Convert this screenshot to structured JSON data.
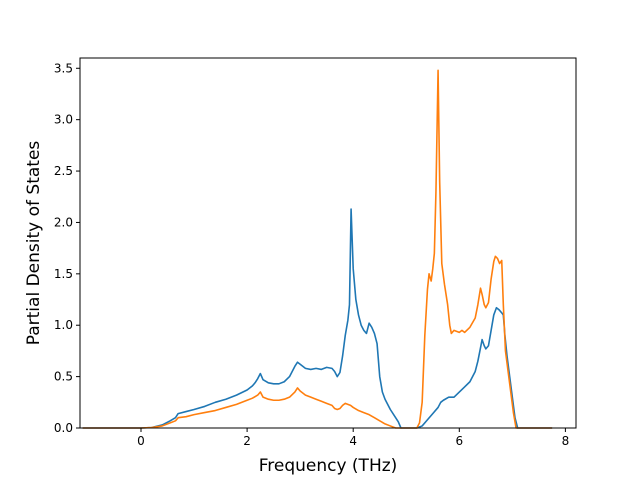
{
  "chart_data": {
    "type": "line",
    "xlabel": "Frequency (THz)",
    "ylabel": "Partial Density of States",
    "xlim": [
      -1.15,
      8.2
    ],
    "ylim": [
      0,
      3.6
    ],
    "xticks": [
      0,
      2,
      4,
      6,
      8
    ],
    "yticks": [
      0.0,
      0.5,
      1.0,
      1.5,
      2.0,
      2.5,
      3.0,
      3.5
    ],
    "xtick_labels": [
      "0",
      "2",
      "4",
      "6",
      "8"
    ],
    "ytick_labels": [
      "0.0",
      "0.5",
      "1.0",
      "1.5",
      "2.0",
      "2.5",
      "3.0",
      "3.5"
    ],
    "grid": false,
    "legend": "none",
    "series": [
      {
        "color": "#1f77b4",
        "points": [
          [
            -1.1,
            0
          ],
          [
            0,
            0
          ],
          [
            0.2,
            0.005
          ],
          [
            0.4,
            0.03
          ],
          [
            0.55,
            0.07
          ],
          [
            0.65,
            0.1
          ],
          [
            0.7,
            0.14
          ],
          [
            0.85,
            0.16
          ],
          [
            1.0,
            0.18
          ],
          [
            1.2,
            0.21
          ],
          [
            1.4,
            0.25
          ],
          [
            1.6,
            0.28
          ],
          [
            1.8,
            0.32
          ],
          [
            2.0,
            0.37
          ],
          [
            2.1,
            0.41
          ],
          [
            2.15,
            0.44
          ],
          [
            2.2,
            0.48
          ],
          [
            2.25,
            0.53
          ],
          [
            2.3,
            0.47
          ],
          [
            2.4,
            0.44
          ],
          [
            2.5,
            0.43
          ],
          [
            2.6,
            0.43
          ],
          [
            2.7,
            0.45
          ],
          [
            2.8,
            0.5
          ],
          [
            2.9,
            0.6
          ],
          [
            2.95,
            0.64
          ],
          [
            3.0,
            0.62
          ],
          [
            3.1,
            0.58
          ],
          [
            3.2,
            0.57
          ],
          [
            3.3,
            0.58
          ],
          [
            3.4,
            0.57
          ],
          [
            3.5,
            0.59
          ],
          [
            3.6,
            0.58
          ],
          [
            3.65,
            0.55
          ],
          [
            3.7,
            0.5
          ],
          [
            3.75,
            0.54
          ],
          [
            3.8,
            0.7
          ],
          [
            3.85,
            0.9
          ],
          [
            3.9,
            1.05
          ],
          [
            3.93,
            1.2
          ],
          [
            3.96,
            2.13
          ],
          [
            4.0,
            1.55
          ],
          [
            4.05,
            1.25
          ],
          [
            4.1,
            1.1
          ],
          [
            4.15,
            1.0
          ],
          [
            4.2,
            0.95
          ],
          [
            4.25,
            0.92
          ],
          [
            4.3,
            1.02
          ],
          [
            4.35,
            0.98
          ],
          [
            4.4,
            0.92
          ],
          [
            4.45,
            0.82
          ],
          [
            4.5,
            0.5
          ],
          [
            4.55,
            0.35
          ],
          [
            4.6,
            0.28
          ],
          [
            4.7,
            0.18
          ],
          [
            4.8,
            0.1
          ],
          [
            4.85,
            0.06
          ],
          [
            4.9,
            0.0
          ],
          [
            5.2,
            0.0
          ],
          [
            5.3,
            0.02
          ],
          [
            5.4,
            0.08
          ],
          [
            5.5,
            0.14
          ],
          [
            5.6,
            0.2
          ],
          [
            5.65,
            0.25
          ],
          [
            5.7,
            0.27
          ],
          [
            5.8,
            0.3
          ],
          [
            5.9,
            0.3
          ],
          [
            6.0,
            0.35
          ],
          [
            6.1,
            0.4
          ],
          [
            6.2,
            0.45
          ],
          [
            6.3,
            0.55
          ],
          [
            6.35,
            0.65
          ],
          [
            6.4,
            0.78
          ],
          [
            6.43,
            0.86
          ],
          [
            6.47,
            0.8
          ],
          [
            6.5,
            0.77
          ],
          [
            6.55,
            0.8
          ],
          [
            6.6,
            0.95
          ],
          [
            6.65,
            1.1
          ],
          [
            6.7,
            1.17
          ],
          [
            6.75,
            1.15
          ],
          [
            6.8,
            1.12
          ],
          [
            6.83,
            1.1
          ],
          [
            6.86,
            0.9
          ],
          [
            6.9,
            0.7
          ],
          [
            6.95,
            0.5
          ],
          [
            7.0,
            0.3
          ],
          [
            7.05,
            0.1
          ],
          [
            7.1,
            0.0
          ],
          [
            7.75,
            0.0
          ]
        ]
      },
      {
        "color": "#ff7f0e",
        "points": [
          [
            -1.1,
            0
          ],
          [
            0,
            0
          ],
          [
            0.2,
            0.004
          ],
          [
            0.4,
            0.02
          ],
          [
            0.55,
            0.05
          ],
          [
            0.65,
            0.07
          ],
          [
            0.7,
            0.1
          ],
          [
            0.85,
            0.11
          ],
          [
            1.0,
            0.13
          ],
          [
            1.2,
            0.15
          ],
          [
            1.4,
            0.17
          ],
          [
            1.6,
            0.2
          ],
          [
            1.8,
            0.23
          ],
          [
            2.0,
            0.27
          ],
          [
            2.1,
            0.29
          ],
          [
            2.2,
            0.32
          ],
          [
            2.25,
            0.35
          ],
          [
            2.3,
            0.3
          ],
          [
            2.4,
            0.28
          ],
          [
            2.5,
            0.27
          ],
          [
            2.6,
            0.27
          ],
          [
            2.7,
            0.28
          ],
          [
            2.8,
            0.3
          ],
          [
            2.9,
            0.35
          ],
          [
            2.95,
            0.39
          ],
          [
            3.0,
            0.36
          ],
          [
            3.1,
            0.32
          ],
          [
            3.2,
            0.3
          ],
          [
            3.3,
            0.28
          ],
          [
            3.4,
            0.26
          ],
          [
            3.5,
            0.24
          ],
          [
            3.6,
            0.22
          ],
          [
            3.65,
            0.19
          ],
          [
            3.7,
            0.18
          ],
          [
            3.75,
            0.19
          ],
          [
            3.8,
            0.22
          ],
          [
            3.85,
            0.24
          ],
          [
            3.9,
            0.23
          ],
          [
            3.95,
            0.22
          ],
          [
            4.0,
            0.2
          ],
          [
            4.1,
            0.17
          ],
          [
            4.2,
            0.15
          ],
          [
            4.3,
            0.13
          ],
          [
            4.4,
            0.1
          ],
          [
            4.5,
            0.07
          ],
          [
            4.6,
            0.04
          ],
          [
            4.7,
            0.02
          ],
          [
            4.8,
            0.0
          ],
          [
            5.2,
            0.0
          ],
          [
            5.25,
            0.05
          ],
          [
            5.3,
            0.25
          ],
          [
            5.35,
            0.9
          ],
          [
            5.4,
            1.35
          ],
          [
            5.43,
            1.5
          ],
          [
            5.47,
            1.43
          ],
          [
            5.5,
            1.55
          ],
          [
            5.53,
            1.7
          ],
          [
            5.56,
            2.3
          ],
          [
            5.6,
            3.48
          ],
          [
            5.63,
            2.4
          ],
          [
            5.67,
            1.6
          ],
          [
            5.72,
            1.4
          ],
          [
            5.78,
            1.2
          ],
          [
            5.82,
            1.0
          ],
          [
            5.85,
            0.92
          ],
          [
            5.9,
            0.95
          ],
          [
            6.0,
            0.93
          ],
          [
            6.05,
            0.95
          ],
          [
            6.1,
            0.93
          ],
          [
            6.2,
            0.98
          ],
          [
            6.3,
            1.07
          ],
          [
            6.35,
            1.2
          ],
          [
            6.4,
            1.36
          ],
          [
            6.43,
            1.3
          ],
          [
            6.47,
            1.2
          ],
          [
            6.5,
            1.17
          ],
          [
            6.55,
            1.22
          ],
          [
            6.6,
            1.45
          ],
          [
            6.65,
            1.62
          ],
          [
            6.68,
            1.67
          ],
          [
            6.72,
            1.65
          ],
          [
            6.76,
            1.6
          ],
          [
            6.8,
            1.63
          ],
          [
            6.83,
            1.2
          ],
          [
            6.87,
            0.75
          ],
          [
            6.92,
            0.55
          ],
          [
            6.97,
            0.35
          ],
          [
            7.02,
            0.15
          ],
          [
            7.07,
            0.0
          ],
          [
            7.75,
            0.0
          ]
        ]
      }
    ]
  }
}
